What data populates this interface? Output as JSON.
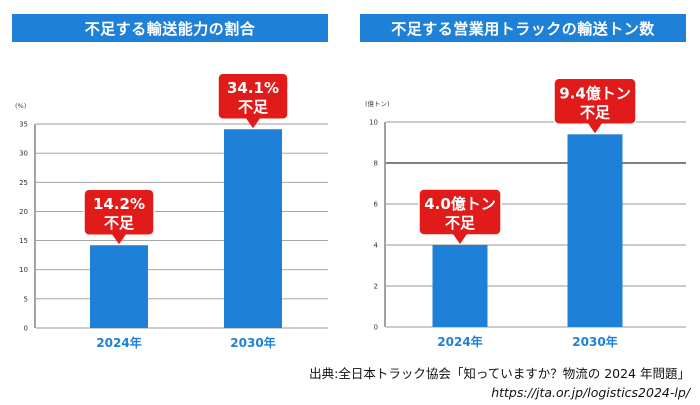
{
  "source": {
    "line1": "出典:全日本トラック協会「知っていますか？物流の 2024 年問題」",
    "line2": "https://jta.or.jp/logistics2024-lp/"
  },
  "colors": {
    "title": "#1f80d8",
    "bar": "#1f80d8",
    "callout": "#e11a1a"
  },
  "chart_data": [
    {
      "type": "bar",
      "title": "不足する輸送能力の割合",
      "ylabel": "(%)",
      "ylim": [
        0,
        35
      ],
      "yticks": [
        "0",
        "5",
        "10",
        "15",
        "20",
        "25",
        "30",
        "35"
      ],
      "categories": [
        "2024年",
        "2030年"
      ],
      "values": [
        14.2,
        34.1
      ],
      "annotations": [
        {
          "line1": "14.2%",
          "line2": "不足"
        },
        {
          "line1": "34.1%",
          "line2": "不足"
        }
      ]
    },
    {
      "type": "bar",
      "title": "不足する営業用トラックの輸送トン数",
      "ylabel": "(億トン)",
      "ylim": [
        0,
        10
      ],
      "yticks": [
        "0",
        "2",
        "4",
        "6",
        "8",
        "10"
      ],
      "categories": [
        "2024年",
        "2030年"
      ],
      "values": [
        4.0,
        9.4
      ],
      "annotations": [
        {
          "line1": "4.0億トン",
          "line2": "不足"
        },
        {
          "line1": "9.4億トン",
          "line2": "不足"
        }
      ]
    }
  ]
}
